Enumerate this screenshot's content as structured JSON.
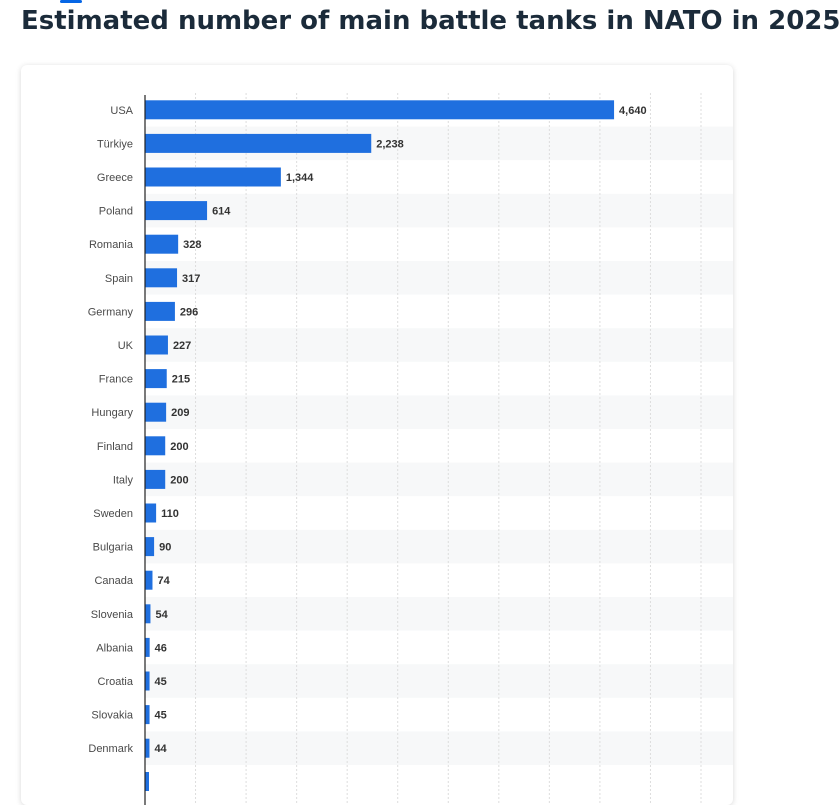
{
  "page": {
    "title": "Estimated number of main battle tanks in NATO in 2025"
  },
  "colors": {
    "bar": "#1f6fdf",
    "stripe": "#f7f8f9",
    "grid": "#dddddd",
    "axis": "#222222"
  },
  "chart_data": {
    "type": "bar",
    "orientation": "horizontal",
    "grid": true,
    "xlim": [
      0,
      5500
    ],
    "categories": [
      "USA",
      "Türkiye",
      "Greece",
      "Poland",
      "Romania",
      "Spain",
      "Germany",
      "UK",
      "France",
      "Hungary",
      "Finland",
      "Italy",
      "Sweden",
      "Bulgaria",
      "Canada",
      "Slovenia",
      "Albania",
      "Croatia",
      "Slovakia",
      "Denmark"
    ],
    "values": [
      4640,
      2238,
      1344,
      614,
      328,
      317,
      296,
      227,
      215,
      209,
      200,
      200,
      110,
      90,
      74,
      54,
      46,
      45,
      45,
      44
    ],
    "value_labels": [
      "4,640",
      "2,238",
      "1,344",
      "614",
      "328",
      "317",
      "296",
      "227",
      "215",
      "209",
      "200",
      "200",
      "110",
      "90",
      "74",
      "54",
      "46",
      "45",
      "45",
      "44"
    ]
  }
}
